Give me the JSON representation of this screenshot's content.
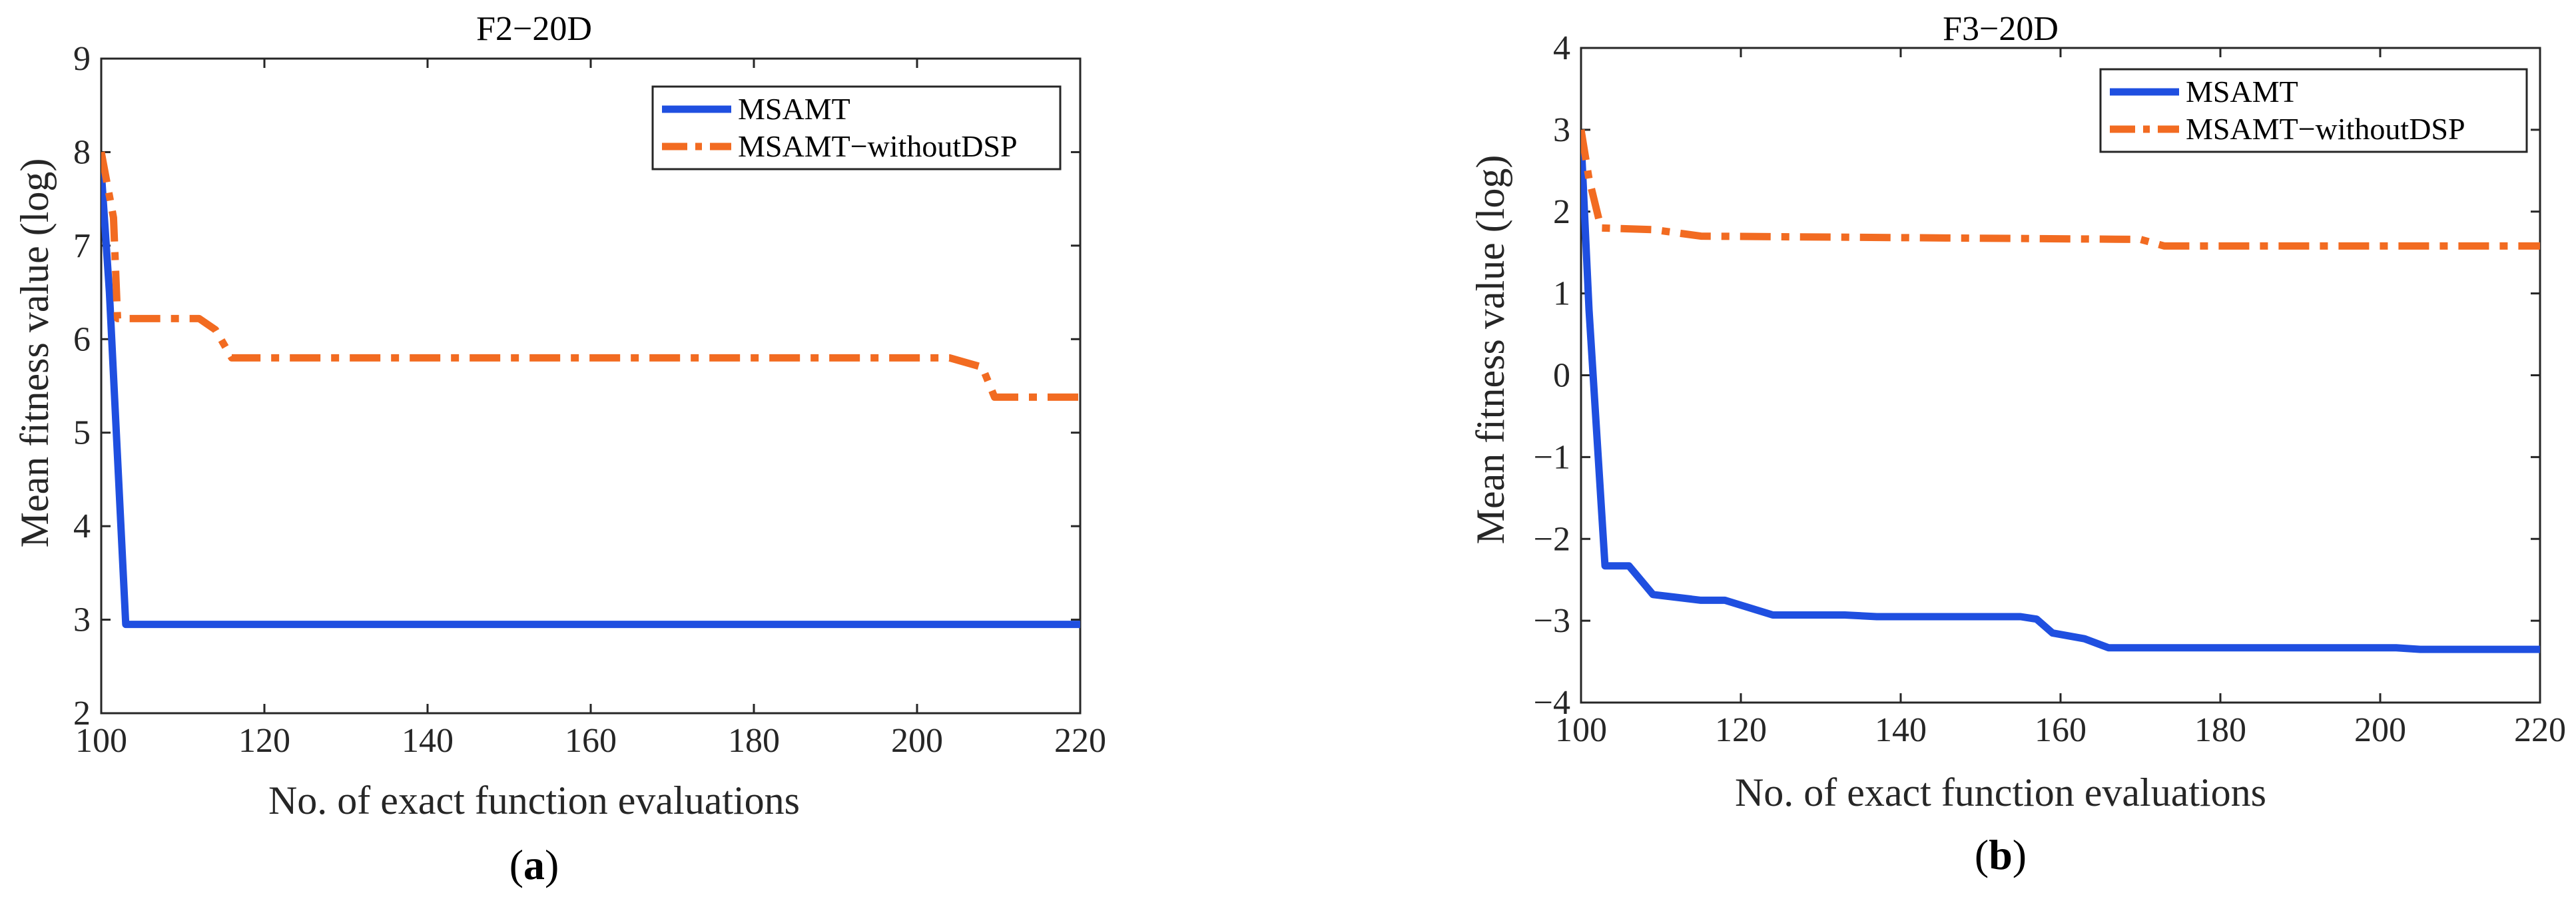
{
  "figure": {
    "captions": [
      {
        "open": "(",
        "letter": "a",
        "close": ")"
      },
      {
        "open": "(",
        "letter": "b",
        "close": ")"
      }
    ]
  },
  "chart_data": [
    {
      "type": "line",
      "title": "F2−20D",
      "xlabel": "No. of exact function evaluations",
      "ylabel": "Mean fitness value (log)",
      "xlim": [
        100,
        220
      ],
      "ylim": [
        2,
        9
      ],
      "xticks": [
        100,
        120,
        140,
        160,
        180,
        200,
        220
      ],
      "yticks": [
        2,
        3,
        4,
        5,
        6,
        7,
        8,
        9
      ],
      "legend": {
        "position": "top-right"
      },
      "series": [
        {
          "name": "MSAMT",
          "color": "#1f4fe0",
          "style": "solid",
          "x": [
            100,
            101,
            103,
            220
          ],
          "y": [
            7.8,
            6.5,
            2.95,
            2.95
          ]
        },
        {
          "name": "MSAMT−withoutDSP",
          "color": "#f26b21",
          "style": "dashdot",
          "x": [
            100,
            101.5,
            102,
            112,
            114,
            116,
            204,
            208,
            209.5,
            220
          ],
          "y": [
            8.0,
            7.3,
            6.22,
            6.22,
            6.1,
            5.8,
            5.8,
            5.7,
            5.38,
            5.38
          ]
        }
      ]
    },
    {
      "type": "line",
      "title": "F3−20D",
      "xlabel": "No. of exact function evaluations",
      "ylabel": "Mean fitness value (log)",
      "xlim": [
        100,
        220
      ],
      "ylim": [
        -4,
        4
      ],
      "xticks": [
        100,
        120,
        140,
        160,
        180,
        200,
        220
      ],
      "yticks": [
        -4,
        -3,
        -2,
        -1,
        0,
        1,
        2,
        3,
        4
      ],
      "ytick_labels": [
        "−4",
        "−3",
        "−2",
        "−1",
        "0",
        "1",
        "2",
        "3",
        "4"
      ],
      "legend": {
        "position": "top-right"
      },
      "series": [
        {
          "name": "MSAMT",
          "color": "#1f4fe0",
          "style": "solid",
          "x": [
            100,
            101,
            103,
            106,
            109,
            115,
            118,
            124,
            133,
            137,
            155,
            157,
            159,
            163,
            166,
            202,
            205,
            220
          ],
          "y": [
            2.9,
            0.8,
            -2.33,
            -2.33,
            -2.68,
            -2.75,
            -2.75,
            -2.93,
            -2.93,
            -2.95,
            -2.95,
            -2.98,
            -3.15,
            -3.22,
            -3.33,
            -3.33,
            -3.35,
            -3.35
          ]
        },
        {
          "name": "MSAMT−withoutDSP",
          "color": "#f26b21",
          "style": "dashdot",
          "x": [
            100,
            101,
            102.5,
            109,
            115,
            170,
            173,
            220
          ],
          "y": [
            3.0,
            2.4,
            1.8,
            1.78,
            1.7,
            1.66,
            1.58,
            1.58
          ]
        }
      ]
    }
  ]
}
